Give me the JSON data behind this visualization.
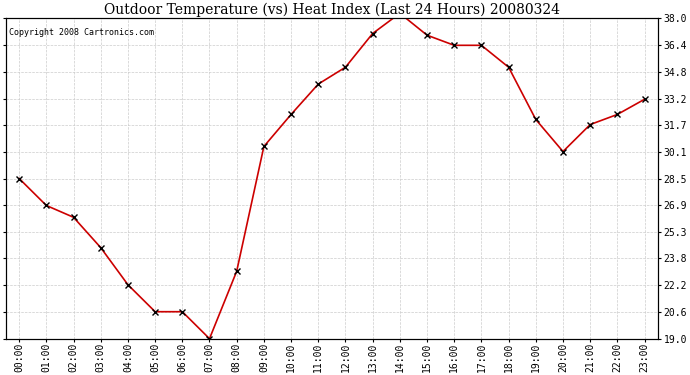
{
  "title": "Outdoor Temperature (vs) Heat Index (Last 24 Hours) 20080324",
  "copyright": "Copyright 2008 Cartronics.com",
  "x_labels": [
    "00:00",
    "01:00",
    "02:00",
    "03:00",
    "04:00",
    "05:00",
    "06:00",
    "07:00",
    "08:00",
    "09:00",
    "10:00",
    "11:00",
    "12:00",
    "13:00",
    "14:00",
    "15:00",
    "16:00",
    "17:00",
    "18:00",
    "19:00",
    "20:00",
    "21:00",
    "22:00",
    "23:00"
  ],
  "y_values": [
    28.5,
    26.9,
    26.2,
    24.4,
    22.2,
    20.6,
    20.6,
    19.0,
    23.0,
    30.4,
    32.3,
    34.1,
    35.1,
    37.1,
    38.3,
    37.0,
    36.4,
    36.4,
    35.1,
    32.0,
    30.1,
    31.7,
    32.3,
    33.2
  ],
  "ylim_min": 19.0,
  "ylim_max": 38.0,
  "yticks": [
    19.0,
    20.6,
    22.2,
    23.8,
    25.3,
    26.9,
    28.5,
    30.1,
    31.7,
    33.2,
    34.8,
    36.4,
    38.0
  ],
  "ytick_labels": [
    "19.0",
    "20.6",
    "22.2",
    "23.8",
    "25.3",
    "26.9",
    "28.5",
    "30.1",
    "31.7",
    "33.2",
    "34.8",
    "36.4",
    "38.0"
  ],
  "line_color": "#cc0000",
  "marker_color": "#000000",
  "marker_size": 4,
  "grid_color": "#cccccc",
  "bg_color": "#ffffff",
  "title_fontsize": 10,
  "copyright_fontsize": 6,
  "tick_fontsize": 7,
  "figwidth": 6.9,
  "figheight": 3.75,
  "dpi": 100
}
